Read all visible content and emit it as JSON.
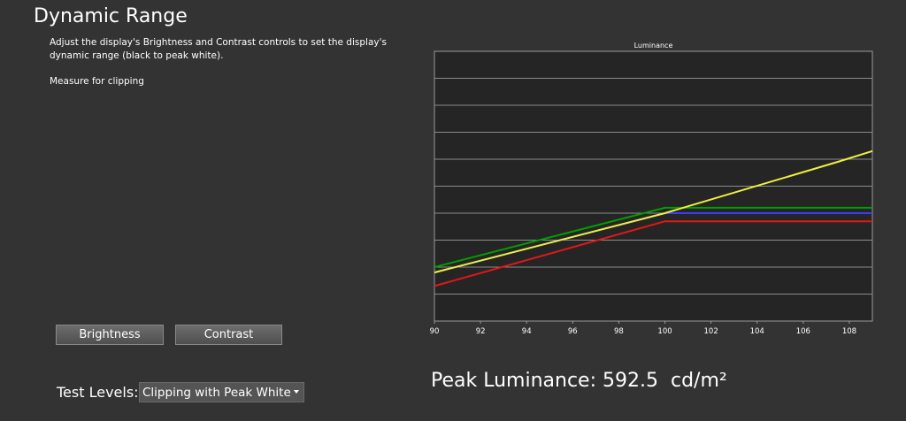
{
  "page": {
    "title": "Dynamic Range",
    "description": "Adjust the display's Brightness and Contrast controls to set the display's dynamic range (black to peak white).",
    "measure_label": "Measure for clipping"
  },
  "buttons": {
    "brightness": "Brightness",
    "contrast": "Contrast"
  },
  "test_levels": {
    "label": "Test Levels:",
    "selected": "Clipping with Peak White"
  },
  "peak": {
    "label": "Peak Luminance:",
    "value": "592.5",
    "unit": "cd/m²"
  },
  "chart_data": {
    "type": "line",
    "title": "Luminance",
    "xlabel": "",
    "ylabel": "",
    "xlim": [
      90,
      109
    ],
    "ylim": [
      0,
      10
    ],
    "x_ticks": [
      "90",
      "92",
      "94",
      "96",
      "98",
      "100",
      "102",
      "104",
      "106",
      "108"
    ],
    "grid": true,
    "legend": "none",
    "series": [
      {
        "color": "#00a000",
        "points": [
          [
            90,
            2.0
          ],
          [
            100,
            4.2
          ],
          [
            109,
            4.2
          ]
        ]
      },
      {
        "color": "#3b3bff",
        "points": [
          [
            90,
            1.8
          ],
          [
            100,
            4.0
          ],
          [
            109,
            4.0
          ]
        ]
      },
      {
        "color": "#e01818",
        "points": [
          [
            90,
            1.3
          ],
          [
            100,
            3.7
          ],
          [
            109,
            3.7
          ]
        ]
      },
      {
        "color": "#f0f040",
        "points": [
          [
            90,
            1.8
          ],
          [
            100,
            4.0
          ],
          [
            107.5,
            5.9
          ],
          [
            109,
            6.3
          ]
        ]
      }
    ]
  }
}
